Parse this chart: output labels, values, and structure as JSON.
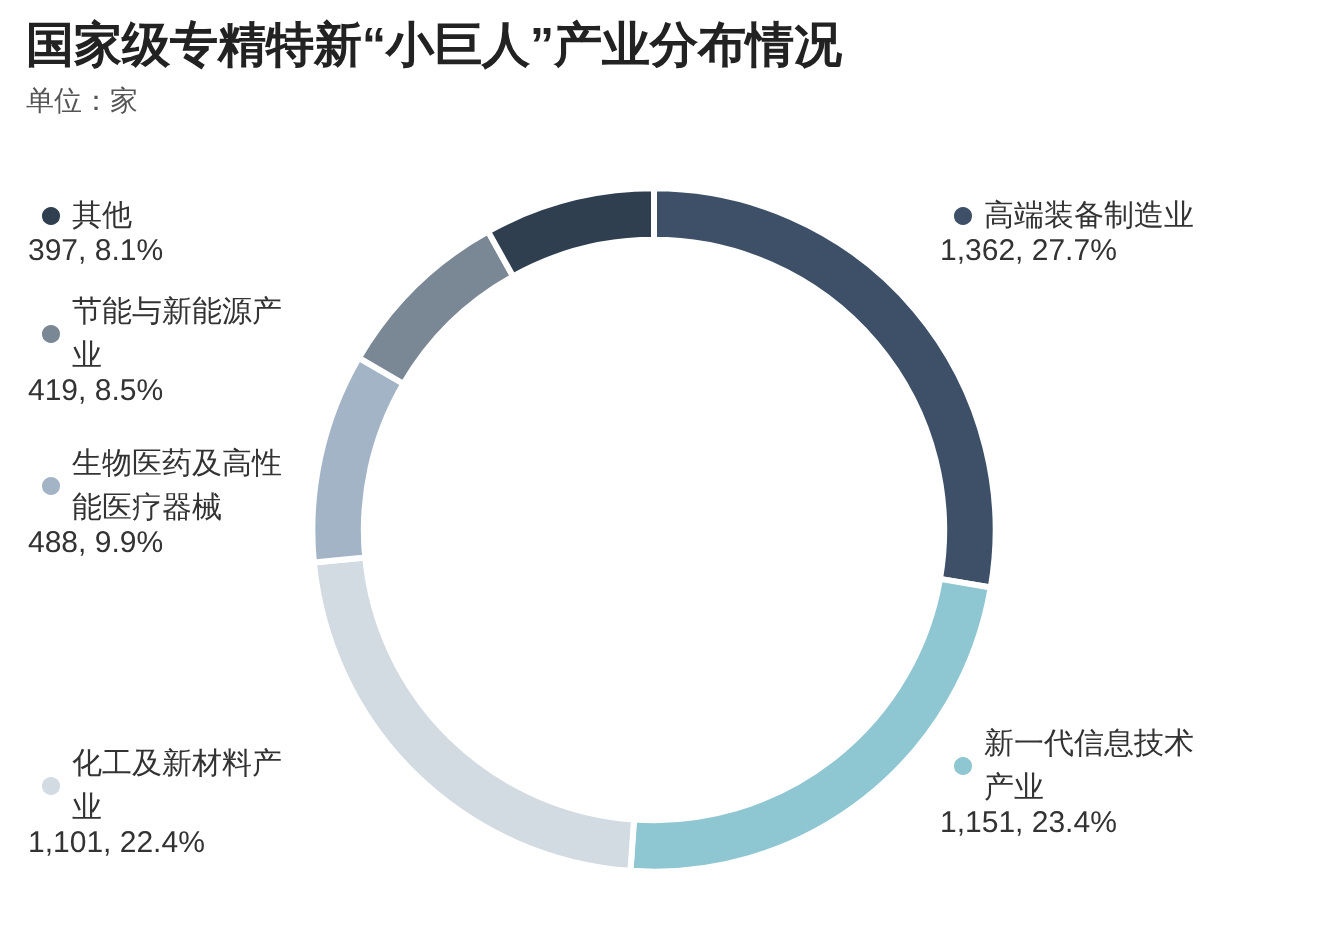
{
  "chart_data": {
    "type": "donut",
    "title": "国家级专精特新“小巨人”产业分布情况",
    "subtitle": "单位：家",
    "categories": [
      "高端装备制造业",
      "新一代信息技术产业",
      "化工及新材料产业",
      "生物医药及高性能医疗器械",
      "节能与新能源产业",
      "其他"
    ],
    "values": [
      1362,
      1151,
      1101,
      488,
      419,
      397
    ],
    "value_labels": [
      "1,362, 27.7%",
      "1,151, 23.4%",
      "1,101, 22.4%",
      "488, 9.9%",
      "419, 8.5%",
      "397, 8.1%"
    ],
    "colors": [
      "#3e5068",
      "#8ec6d2",
      "#d2dae2",
      "#a3b4c7",
      "#7a8795",
      "#2f3f50"
    ],
    "legend": "left"
  }
}
